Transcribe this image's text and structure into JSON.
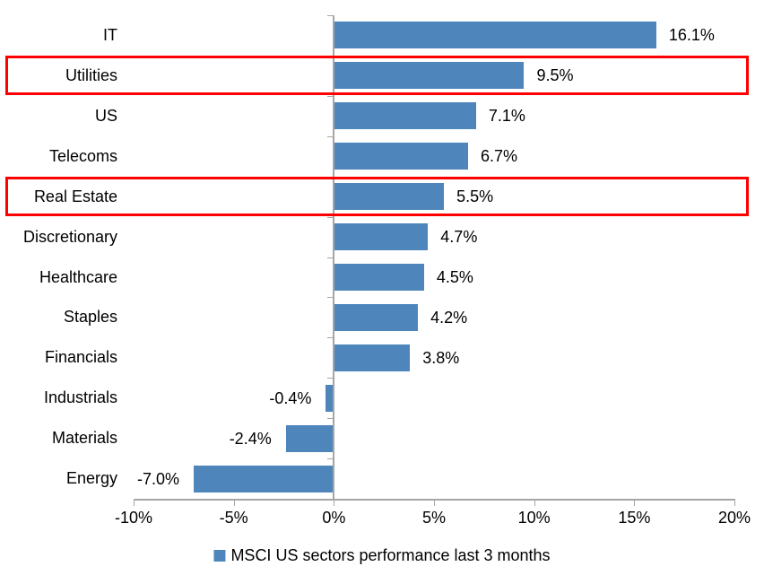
{
  "chart_data": {
    "type": "bar",
    "orientation": "horizontal",
    "categories": [
      "IT",
      "Utilities",
      "US",
      "Telecoms",
      "Real Estate",
      "Discretionary",
      "Healthcare",
      "Staples",
      "Financials",
      "Industrials",
      "Materials",
      "Energy"
    ],
    "values": [
      16.1,
      9.5,
      7.1,
      6.7,
      5.5,
      4.7,
      4.5,
      4.2,
      3.8,
      -0.4,
      -2.4,
      -7.0
    ],
    "value_labels": [
      "16.1%",
      "9.5%",
      "7.1%",
      "6.7%",
      "5.5%",
      "4.7%",
      "4.5%",
      "4.2%",
      "3.8%",
      "-0.4%",
      "-2.4%",
      "-7.0%"
    ],
    "x_ticks": [
      {
        "value": -10,
        "label": "-10%"
      },
      {
        "value": -5,
        "label": "-5%"
      },
      {
        "value": 0,
        "label": "0%"
      },
      {
        "value": 5,
        "label": "5%"
      },
      {
        "value": 10,
        "label": "10%"
      },
      {
        "value": 15,
        "label": "15%"
      },
      {
        "value": 20,
        "label": "20%"
      }
    ],
    "xlim": [
      -10,
      20
    ],
    "grid": false,
    "highlighted_categories": [
      "Utilities",
      "Real Estate"
    ],
    "legend": {
      "position": "bottom-center",
      "label": "MSCI US sectors performance last 3 months",
      "marker_color": "#4E86BC"
    },
    "bar_color": "#4E86BC",
    "highlight_box_color": "#FF0000",
    "axis_color": "#A6A6A6",
    "text_color": "#000000"
  }
}
